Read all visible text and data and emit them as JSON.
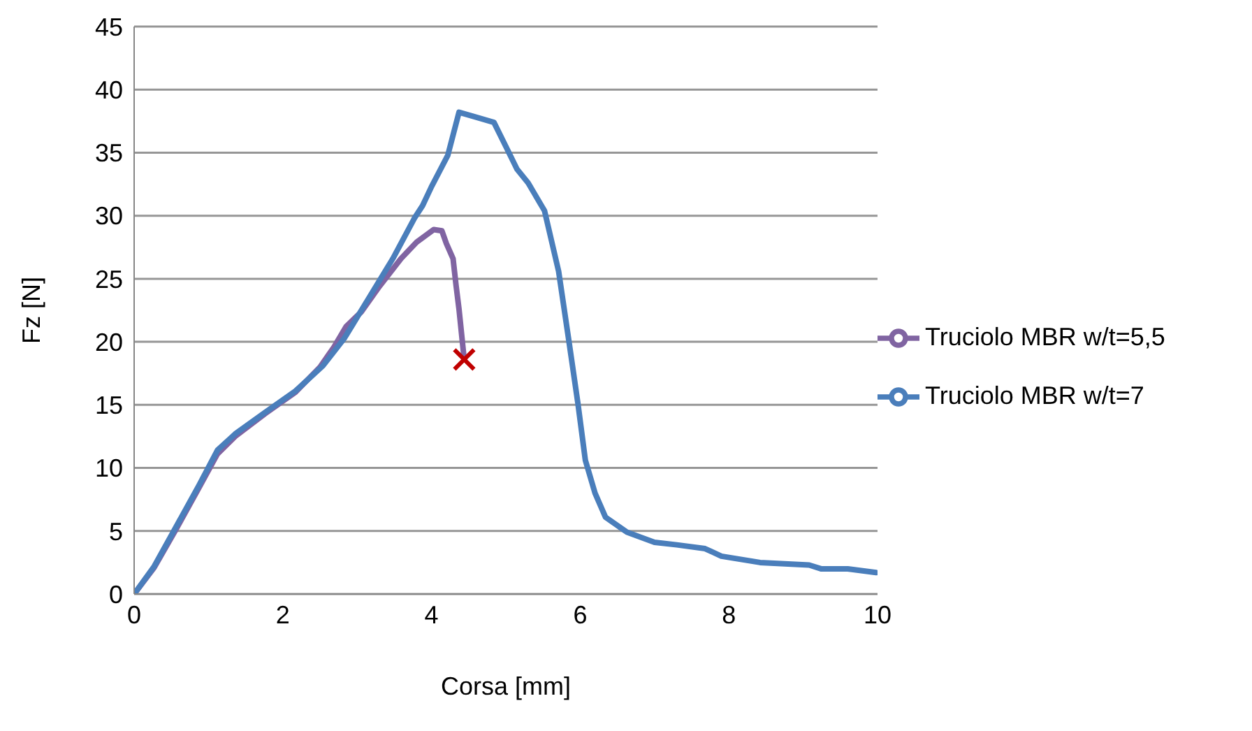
{
  "chart_data": {
    "type": "line",
    "xlabel": "Corsa [mm]",
    "ylabel": "Fz [N]",
    "xlim": [
      0,
      10
    ],
    "xticks": [
      0,
      2,
      4,
      6,
      8,
      10
    ],
    "ylim": [
      0,
      45
    ],
    "yticks": [
      0,
      5,
      10,
      15,
      20,
      25,
      30,
      35,
      40,
      45
    ],
    "grid": "y",
    "legend": "right",
    "marker": "none",
    "line_style": "solid",
    "series": [
      {
        "name": "Truciolo MBR w/t=5,5",
        "color": "#8064a2",
        "x": [
          0,
          0.27,
          0.58,
          0.87,
          1.12,
          1.36,
          1.76,
          2.17,
          2.5,
          2.69,
          2.85,
          3.06,
          3.3,
          3.59,
          3.8,
          4.03,
          4.14,
          4.2,
          4.29,
          4.33,
          4.37,
          4.44
        ],
        "values": [
          0,
          2.1,
          5.3,
          8.4,
          11.1,
          12.5,
          14.3,
          16.0,
          18.0,
          19.6,
          21.2,
          22.4,
          24.4,
          26.6,
          27.9,
          28.9,
          28.8,
          27.8,
          26.6,
          24.5,
          22.6,
          18.6
        ]
      },
      {
        "name": "Truciolo MBR w/t=7",
        "color": "#4a7ebb",
        "x": [
          0,
          0.27,
          0.58,
          0.87,
          1.12,
          1.36,
          1.76,
          2.17,
          2.54,
          2.83,
          3.15,
          3.48,
          3.77,
          3.88,
          4.0,
          4.22,
          4.37,
          4.55,
          4.84,
          5.0,
          5.15,
          5.3,
          5.52,
          5.71,
          5.85,
          5.97,
          6.07,
          6.2,
          6.34,
          6.63,
          7.0,
          7.3,
          7.68,
          7.9,
          8.42,
          9.08,
          9.24,
          9.6,
          9.98
        ],
        "values": [
          0,
          2.2,
          5.5,
          8.6,
          11.4,
          12.7,
          14.4,
          16.1,
          18.1,
          20.3,
          23.4,
          26.6,
          29.8,
          30.8,
          32.3,
          34.8,
          38.2,
          37.9,
          37.4,
          35.5,
          33.7,
          32.6,
          30.4,
          25.6,
          20.0,
          15.1,
          10.6,
          8.0,
          6.1,
          4.9,
          4.1,
          3.9,
          3.6,
          3.0,
          2.5,
          2.3,
          2.0,
          2.0,
          1.7
        ]
      },
      {
        "type": "scatter",
        "color": "#c00000",
        "marker": "cross",
        "x": [
          4.44
        ],
        "values": [
          18.6
        ]
      }
    ]
  }
}
